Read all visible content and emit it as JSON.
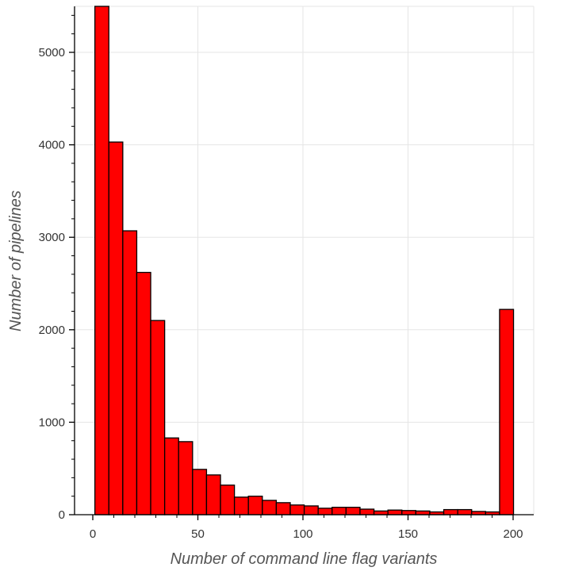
{
  "chart_data": {
    "type": "bar",
    "title": "",
    "xlabel": "Number of command line flag variants",
    "ylabel": "Number of pipelines",
    "xlim": [
      -5,
      210
    ],
    "ylim": [
      0,
      5500
    ],
    "bin_width": 6.64,
    "x_ticks": [
      0,
      50,
      100,
      150,
      200
    ],
    "y_ticks": [
      0,
      1000,
      2000,
      3000,
      4000,
      5000
    ],
    "grid": true,
    "legend": "none",
    "colors": {
      "bar_fill": "#ff0000",
      "bar_stroke": "#000000",
      "grid": "#e5e5e5",
      "axis": "#000000"
    },
    "bins": [
      {
        "x0": 1.0,
        "value": 5600
      },
      {
        "x0": 7.64,
        "value": 4030
      },
      {
        "x0": 14.28,
        "value": 3070
      },
      {
        "x0": 20.92,
        "value": 2620
      },
      {
        "x0": 27.56,
        "value": 2100
      },
      {
        "x0": 34.2,
        "value": 830
      },
      {
        "x0": 40.84,
        "value": 790
      },
      {
        "x0": 47.48,
        "value": 490
      },
      {
        "x0": 54.12,
        "value": 430
      },
      {
        "x0": 60.76,
        "value": 320
      },
      {
        "x0": 67.4,
        "value": 190
      },
      {
        "x0": 74.04,
        "value": 200
      },
      {
        "x0": 80.68,
        "value": 155
      },
      {
        "x0": 87.32,
        "value": 130
      },
      {
        "x0": 93.96,
        "value": 105
      },
      {
        "x0": 100.6,
        "value": 95
      },
      {
        "x0": 107.24,
        "value": 70
      },
      {
        "x0": 113.88,
        "value": 80
      },
      {
        "x0": 120.52,
        "value": 80
      },
      {
        "x0": 127.16,
        "value": 60
      },
      {
        "x0": 133.8,
        "value": 40
      },
      {
        "x0": 140.44,
        "value": 50
      },
      {
        "x0": 147.08,
        "value": 45
      },
      {
        "x0": 153.72,
        "value": 40
      },
      {
        "x0": 160.36,
        "value": 30
      },
      {
        "x0": 167.0,
        "value": 55
      },
      {
        "x0": 173.64,
        "value": 55
      },
      {
        "x0": 180.28,
        "value": 35
      },
      {
        "x0": 186.92,
        "value": 30
      },
      {
        "x0": 193.56,
        "value": 2220
      }
    ]
  }
}
